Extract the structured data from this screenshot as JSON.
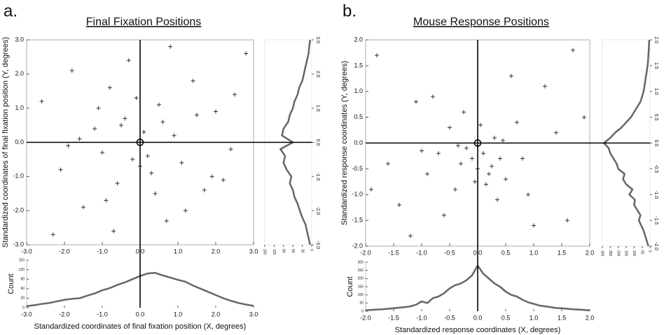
{
  "chart_data": [
    {
      "type": "scatter",
      "panel_label": "a.",
      "title": "Final Fixation Positions",
      "ylabel": "Standardized coordinates of final fixation position (Y, degrees)",
      "color": "#333333",
      "xlim": [
        -3,
        3
      ],
      "ylim": [
        -3,
        3
      ],
      "xticks": [
        {
          "value": -3,
          "label": "-3.0"
        },
        {
          "value": -2,
          "label": "-2.0"
        },
        {
          "value": -1,
          "label": "-1.0"
        },
        {
          "value": 0,
          "label": "0.0"
        },
        {
          "value": 1,
          "label": "1.0"
        },
        {
          "value": 2,
          "label": "2.0"
        },
        {
          "value": 3,
          "label": "3.0"
        }
      ],
      "yticks": [
        {
          "value": -3,
          "label": "-3.0"
        },
        {
          "value": -2,
          "label": "-2.0"
        },
        {
          "value": -1,
          "label": "-1.0"
        },
        {
          "value": 0,
          "label": "0.0"
        },
        {
          "value": 1,
          "label": "1.0"
        },
        {
          "value": 2,
          "label": "2.0"
        },
        {
          "value": 3,
          "label": "3.0"
        }
      ],
      "x": [
        -2.6,
        -2.1,
        -1.8,
        -1.5,
        -1.2,
        -1.0,
        -0.8,
        -0.6,
        -0.4,
        -0.2,
        0.1,
        0.3,
        0.5,
        0.7,
        0.9,
        1.1,
        1.4,
        1.7,
        2.0,
        2.4,
        2.8,
        -2.3,
        -1.6,
        -0.9,
        -0.3,
        0.2,
        0.6,
        1.2,
        1.9,
        2.5,
        -1.1,
        -0.5,
        0.4,
        0.8,
        -0.7,
        1.5,
        -1.9,
        2.2,
        -0.1,
        0.0
      ],
      "y": [
        1.2,
        -0.8,
        2.1,
        -1.9,
        0.4,
        -0.3,
        1.6,
        -1.2,
        0.7,
        -0.5,
        0.3,
        -0.9,
        1.1,
        -2.3,
        0.2,
        -0.6,
        1.8,
        -1.4,
        0.9,
        -0.2,
        2.6,
        -2.7,
        0.1,
        -1.7,
        2.4,
        -0.4,
        0.6,
        -2.0,
        -1.0,
        1.4,
        1.0,
        0.5,
        -1.5,
        2.8,
        -2.6,
        0.8,
        -0.1,
        -1.1,
        1.3,
        -0.7
      ]
    },
    {
      "type": "line",
      "orientation": "horizontal",
      "xlabel": "Standardized coordinates of final fixation position (X, degrees)",
      "ylabel": "Count",
      "color": "#666666",
      "xlim": [
        -3,
        3
      ],
      "ylim": [
        0,
        150
      ],
      "xticks": [
        {
          "value": -3,
          "label": "-3.0"
        },
        {
          "value": -2,
          "label": "-2.0"
        },
        {
          "value": -1,
          "label": "-1.0"
        },
        {
          "value": 0,
          "label": "0.0"
        },
        {
          "value": 1,
          "label": "1.0"
        },
        {
          "value": 2,
          "label": "2.0"
        },
        {
          "value": 3,
          "label": "3.0"
        }
      ],
      "yticks": [
        0,
        30,
        60,
        90,
        120,
        150
      ],
      "x": [
        -3.0,
        -2.8,
        -2.6,
        -2.4,
        -2.2,
        -2.0,
        -1.8,
        -1.6,
        -1.4,
        -1.2,
        -1.0,
        -0.8,
        -0.6,
        -0.4,
        -0.2,
        0.0,
        0.2,
        0.4,
        0.6,
        0.8,
        1.0,
        1.2,
        1.4,
        1.6,
        1.8,
        2.0,
        2.2,
        2.4,
        2.6,
        2.8,
        3.0
      ],
      "values": [
        5,
        8,
        12,
        15,
        20,
        25,
        28,
        30,
        38,
        45,
        55,
        62,
        72,
        80,
        90,
        100,
        108,
        110,
        102,
        95,
        88,
        82,
        70,
        60,
        50,
        40,
        30,
        22,
        15,
        10,
        6
      ]
    },
    {
      "type": "line",
      "orientation": "vertical",
      "color": "#666666",
      "xlim": [
        -3,
        3
      ],
      "ylim": [
        150,
        0
      ],
      "xticks": [
        {
          "value": -3,
          "label": "-3.0"
        },
        {
          "value": -2,
          "label": "-2.0"
        },
        {
          "value": -1,
          "label": "-1.0"
        },
        {
          "value": 0,
          "label": "0.0"
        },
        {
          "value": 1,
          "label": "1.0"
        },
        {
          "value": 2,
          "label": "2.0"
        },
        {
          "value": 3,
          "label": "3.0"
        }
      ],
      "yticks": [
        150,
        120,
        90,
        60,
        30,
        0
      ],
      "x": [
        -3.0,
        -2.8,
        -2.6,
        -2.4,
        -2.2,
        -2.0,
        -1.8,
        -1.6,
        -1.4,
        -1.2,
        -1.0,
        -0.8,
        -0.6,
        -0.4,
        -0.2,
        0.0,
        0.2,
        0.4,
        0.6,
        0.8,
        1.0,
        1.2,
        1.4,
        1.6,
        1.8,
        2.0,
        2.2,
        2.4,
        2.6,
        2.8,
        3.0
      ],
      "values": [
        5,
        10,
        15,
        20,
        30,
        38,
        45,
        55,
        60,
        70,
        65,
        80,
        90,
        85,
        100,
        60,
        95,
        90,
        75,
        70,
        60,
        55,
        45,
        40,
        30,
        25,
        20,
        15,
        10,
        8,
        5
      ]
    },
    {
      "type": "scatter",
      "panel_label": "b.",
      "title": "Mouse Response Positions",
      "ylabel": "Standardized response coordinates (Y, degrees)",
      "color": "#333333",
      "xlim": [
        -2,
        2
      ],
      "ylim": [
        -2,
        2
      ],
      "xticks": [
        {
          "value": -2,
          "label": "-2.0"
        },
        {
          "value": -1.5,
          "label": "-1.5"
        },
        {
          "value": -1,
          "label": "-1.0"
        },
        {
          "value": -0.5,
          "label": "-0.5"
        },
        {
          "value": 0,
          "label": "0.0"
        },
        {
          "value": 0.5,
          "label": "0.5"
        },
        {
          "value": 1,
          "label": "1.0"
        },
        {
          "value": 1.5,
          "label": "1.5"
        },
        {
          "value": 2,
          "label": "2.0"
        }
      ],
      "yticks": [
        {
          "value": -2,
          "label": "-2.0"
        },
        {
          "value": -1.5,
          "label": "-1.5"
        },
        {
          "value": -1,
          "label": "-1.0"
        },
        {
          "value": -0.5,
          "label": "-0.5"
        },
        {
          "value": 0,
          "label": "0.0"
        },
        {
          "value": 0.5,
          "label": "0.5"
        },
        {
          "value": 1,
          "label": "1.0"
        },
        {
          "value": 1.5,
          "label": "1.5"
        },
        {
          "value": 2,
          "label": "2.0"
        }
      ],
      "x": [
        -1.8,
        -1.4,
        -1.1,
        -0.9,
        -0.7,
        -0.5,
        -0.4,
        -0.3,
        -0.2,
        -0.1,
        0.0,
        0.1,
        0.2,
        0.3,
        0.4,
        0.5,
        0.7,
        0.9,
        1.2,
        1.6,
        1.9,
        -1.6,
        -1.2,
        -0.6,
        -0.25,
        0.15,
        0.35,
        0.8,
        1.4,
        -0.8,
        0.6,
        -0.35,
        0.25,
        1.0,
        -1.0,
        0.05,
        -0.05,
        1.7,
        -1.9,
        0.45
      ],
      "y": [
        1.7,
        -1.2,
        0.8,
        -0.6,
        -0.2,
        0.3,
        -0.9,
        -0.4,
        -0.1,
        -0.3,
        -0.5,
        -0.2,
        -0.6,
        0.1,
        -0.3,
        -0.7,
        0.4,
        -1.0,
        1.1,
        -1.5,
        0.5,
        -0.4,
        -1.8,
        -1.4,
        0.6,
        -0.8,
        -1.1,
        -0.3,
        0.2,
        0.9,
        1.3,
        -0.05,
        -0.45,
        -1.6,
        -0.15,
        0.35,
        -0.75,
        1.8,
        -0.9,
        0.05
      ]
    },
    {
      "type": "line",
      "orientation": "horizontal",
      "xlabel": "Standardized response coordinates (X, degrees)",
      "ylabel": "Count",
      "color": "#666666",
      "xlim": [
        -2,
        2
      ],
      "ylim": [
        0,
        300
      ],
      "xticks": [
        {
          "value": -2,
          "label": "-2.0"
        },
        {
          "value": -1.5,
          "label": "-1.5"
        },
        {
          "value": -1,
          "label": "-1.0"
        },
        {
          "value": -0.5,
          "label": "-0.5"
        },
        {
          "value": 0,
          "label": "0.0"
        },
        {
          "value": 0.5,
          "label": "0.5"
        },
        {
          "value": 1,
          "label": "1.0"
        },
        {
          "value": 1.5,
          "label": "1.5"
        },
        {
          "value": 2,
          "label": "2.0"
        }
      ],
      "yticks": [
        0,
        50,
        100,
        150,
        200,
        250,
        300
      ],
      "x": [
        -2.0,
        -1.9,
        -1.8,
        -1.7,
        -1.6,
        -1.5,
        -1.4,
        -1.3,
        -1.2,
        -1.1,
        -1.0,
        -0.9,
        -0.8,
        -0.7,
        -0.6,
        -0.5,
        -0.4,
        -0.3,
        -0.2,
        -0.1,
        0.0,
        0.1,
        0.2,
        0.3,
        0.4,
        0.5,
        0.6,
        0.7,
        0.8,
        0.9,
        1.0,
        1.1,
        1.2,
        1.3,
        1.4,
        1.5,
        1.6,
        1.7,
        1.8,
        1.9,
        2.0
      ],
      "values": [
        5,
        8,
        10,
        12,
        15,
        18,
        22,
        25,
        30,
        40,
        60,
        50,
        80,
        90,
        110,
        140,
        160,
        170,
        190,
        220,
        280,
        230,
        200,
        170,
        150,
        120,
        100,
        90,
        70,
        55,
        45,
        35,
        30,
        25,
        20,
        18,
        15,
        12,
        10,
        8,
        5
      ]
    },
    {
      "type": "line",
      "orientation": "vertical",
      "color": "#666666",
      "xlim": [
        -2,
        2
      ],
      "ylim": [
        300,
        0
      ],
      "xticks": [
        {
          "value": -2,
          "label": "-2.0"
        },
        {
          "value": -1.5,
          "label": "-1.5"
        },
        {
          "value": -1,
          "label": "-1.0"
        },
        {
          "value": -0.5,
          "label": "-0.5"
        },
        {
          "value": 0,
          "label": "0.0"
        },
        {
          "value": 0.5,
          "label": "0.5"
        },
        {
          "value": 1,
          "label": "1.0"
        },
        {
          "value": 1.5,
          "label": "1.5"
        },
        {
          "value": 2,
          "label": "2.0"
        }
      ],
      "yticks": [
        300,
        250,
        200,
        150,
        100,
        50,
        0
      ],
      "x": [
        -2.0,
        -1.9,
        -1.8,
        -1.7,
        -1.6,
        -1.5,
        -1.4,
        -1.3,
        -1.2,
        -1.1,
        -1.0,
        -0.9,
        -0.8,
        -0.7,
        -0.6,
        -0.5,
        -0.4,
        -0.3,
        -0.2,
        -0.1,
        0.0,
        0.1,
        0.2,
        0.3,
        0.4,
        0.5,
        0.6,
        0.7,
        0.8,
        0.9,
        1.0,
        1.1,
        1.2,
        1.3,
        1.4,
        1.5,
        1.6,
        1.7,
        1.8,
        1.9,
        2.0
      ],
      "values": [
        10,
        20,
        30,
        40,
        55,
        70,
        60,
        80,
        100,
        95,
        130,
        110,
        150,
        170,
        160,
        200,
        210,
        230,
        250,
        260,
        290,
        250,
        220,
        180,
        150,
        120,
        100,
        80,
        60,
        50,
        40,
        35,
        30,
        25,
        20,
        15,
        12,
        10,
        8,
        6,
        5
      ]
    }
  ]
}
